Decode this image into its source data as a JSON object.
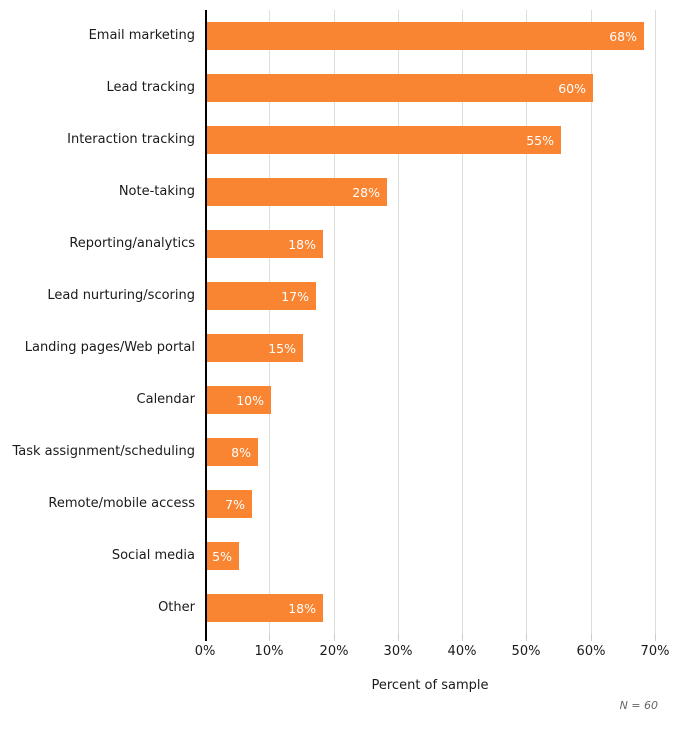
{
  "chart_data": {
    "type": "bar",
    "orientation": "horizontal",
    "title": "",
    "categories": [
      "Email marketing",
      "Lead tracking",
      "Interaction tracking",
      "Note-taking",
      "Reporting/analytics",
      "Lead nurturing/scoring",
      "Landing pages/Web portal",
      "Calendar",
      "Task assignment/scheduling",
      "Remote/mobile access",
      "Social media",
      "Other"
    ],
    "values": [
      68,
      60,
      55,
      28,
      18,
      17,
      15,
      10,
      8,
      7,
      5,
      18
    ],
    "value_labels": [
      "68%",
      "60%",
      "55%",
      "28%",
      "18%",
      "17%",
      "15%",
      "10%",
      "8%",
      "7%",
      "5%",
      "18%"
    ],
    "xlabel": "Percent of sample",
    "note": "N = 60",
    "xlim": [
      0,
      70
    ],
    "xticks": [
      "0%",
      "10%",
      "20%",
      "30%",
      "40%",
      "50%",
      "60%",
      "70%"
    ],
    "grid": "vertical-only",
    "legend": "none",
    "colors": {
      "bar": "#F98432",
      "grid": "#DDDDDD",
      "tick": "#CCCCCC",
      "axis": "#000000",
      "value_label": "#FFFFFF",
      "text": "#1A1A1A",
      "note_text": "#666666"
    }
  }
}
